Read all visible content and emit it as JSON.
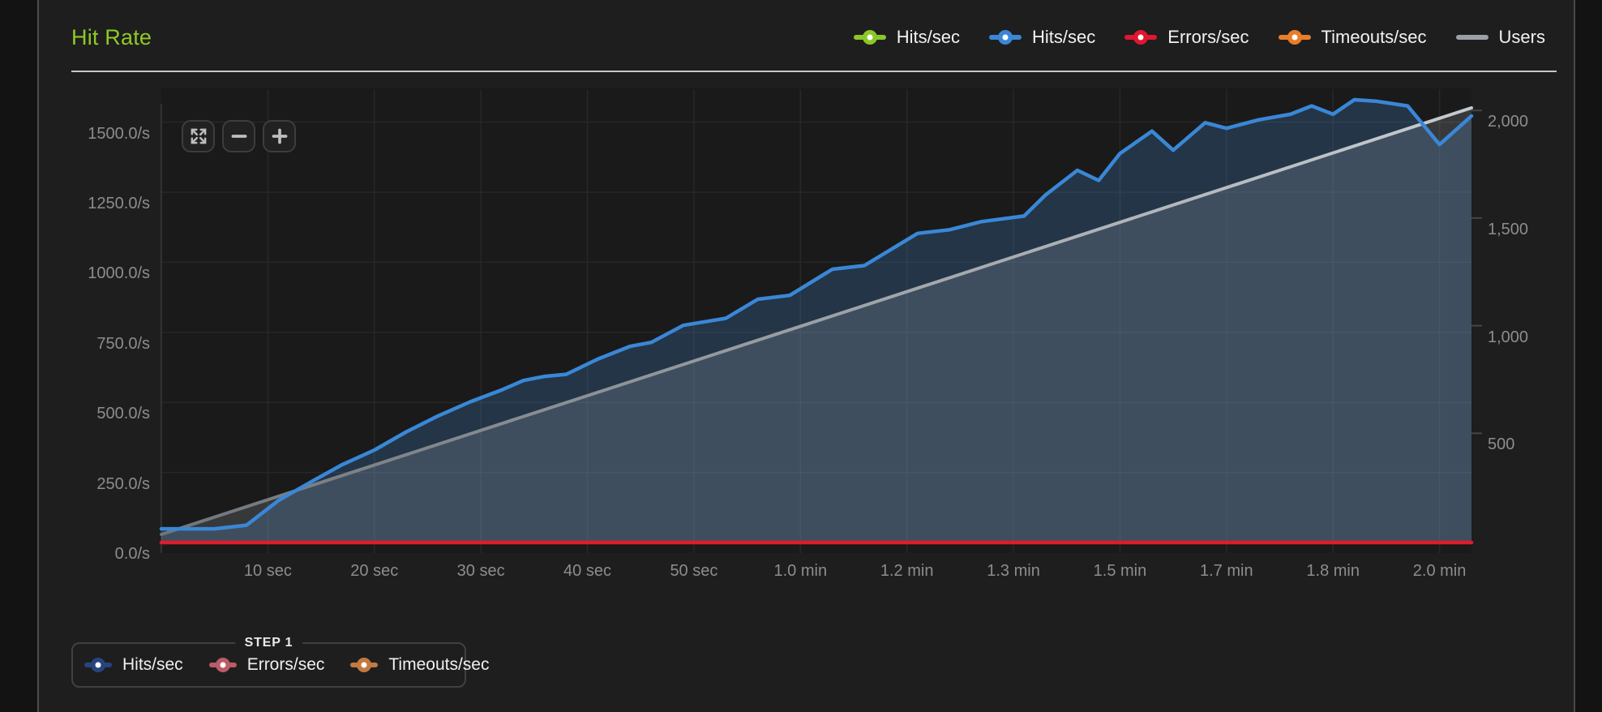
{
  "panel": {
    "title": "Hit Rate"
  },
  "top_legend": {
    "items": [
      {
        "label": "Hits/sec",
        "color": "#8bc727",
        "marker": "dot-line"
      },
      {
        "label": "Hits/sec",
        "color": "#3a87d6",
        "marker": "dot-line"
      },
      {
        "label": "Errors/sec",
        "color": "#e0172f",
        "marker": "dot-line"
      },
      {
        "label": "Timeouts/sec",
        "color": "#ea7d28",
        "marker": "dot-line"
      },
      {
        "label": "Users",
        "color": "#9aa0a6",
        "marker": "line"
      }
    ]
  },
  "zoom_controls": {
    "buttons": [
      {
        "name": "fullscreen-button",
        "icon": "expand-arrows-icon"
      },
      {
        "name": "zoom-out-button",
        "icon": "minus-icon"
      },
      {
        "name": "zoom-in-button",
        "icon": "plus-icon"
      }
    ]
  },
  "chart_data": {
    "type": "line",
    "title": "Hit Rate",
    "grid": true,
    "x_axis": {
      "unit": "time",
      "domain_seconds": [
        0,
        123
      ],
      "ticks": [
        {
          "t": 10,
          "label": "10 sec"
        },
        {
          "t": 20,
          "label": "20 sec"
        },
        {
          "t": 30,
          "label": "30 sec"
        },
        {
          "t": 40,
          "label": "40 sec"
        },
        {
          "t": 50,
          "label": "50 sec"
        },
        {
          "t": 60,
          "label": "1.0 min"
        },
        {
          "t": 70,
          "label": "1.2 min"
        },
        {
          "t": 80,
          "label": "1.3 min"
        },
        {
          "t": 90,
          "label": "1.5 min"
        },
        {
          "t": 100,
          "label": "1.7 min"
        },
        {
          "t": 110,
          "label": "1.8 min"
        },
        {
          "t": 120,
          "label": "2.0 min"
        }
      ]
    },
    "y_left": {
      "unit": "/s",
      "range": [
        0,
        1650
      ],
      "ticks": [
        {
          "v": 0,
          "label": "0.0/s"
        },
        {
          "v": 250,
          "label": "250.0/s"
        },
        {
          "v": 500,
          "label": "500.0/s"
        },
        {
          "v": 750,
          "label": "750.0/s"
        },
        {
          "v": 1000,
          "label": "1000.0/s"
        },
        {
          "v": 1250,
          "label": "1250.0/s"
        },
        {
          "v": 1500,
          "label": "1500.0/s"
        }
      ]
    },
    "y_right": {
      "unit": "users",
      "range": [
        0,
        2150
      ],
      "ticks": [
        {
          "v": 500,
          "label": "500"
        },
        {
          "v": 1000,
          "label": "1,000"
        },
        {
          "v": 1500,
          "label": "1,500"
        },
        {
          "v": 2000,
          "label": "2,000"
        }
      ]
    },
    "series": [
      {
        "name": "Hits/sec",
        "axis": "left",
        "color": "#3a87d6",
        "area": true,
        "area_color": "rgba(62,125,190,0.28)",
        "points": [
          [
            0,
            49
          ],
          [
            5,
            49
          ],
          [
            8,
            62
          ],
          [
            11,
            150
          ],
          [
            14,
            215
          ],
          [
            17,
            278
          ],
          [
            20,
            330
          ],
          [
            23,
            395
          ],
          [
            26,
            452
          ],
          [
            29,
            502
          ],
          [
            32,
            545
          ],
          [
            34,
            578
          ],
          [
            36,
            593
          ],
          [
            38,
            600
          ],
          [
            41,
            655
          ],
          [
            44,
            700
          ],
          [
            46,
            714
          ],
          [
            49,
            775
          ],
          [
            53,
            800
          ],
          [
            56,
            868
          ],
          [
            59,
            882
          ],
          [
            63,
            975
          ],
          [
            66,
            988
          ],
          [
            71,
            1103
          ],
          [
            74,
            1116
          ],
          [
            77,
            1145
          ],
          [
            81,
            1165
          ],
          [
            83,
            1240
          ],
          [
            86,
            1328
          ],
          [
            88,
            1292
          ],
          [
            90,
            1388
          ],
          [
            93,
            1468
          ],
          [
            95,
            1400
          ],
          [
            98,
            1498
          ],
          [
            100,
            1478
          ],
          [
            103,
            1508
          ],
          [
            106,
            1528
          ],
          [
            108,
            1558
          ],
          [
            110,
            1528
          ],
          [
            112,
            1580
          ],
          [
            114,
            1575
          ],
          [
            117,
            1558
          ],
          [
            120,
            1420
          ],
          [
            123,
            1522
          ]
        ]
      },
      {
        "name": "Errors/sec",
        "axis": "left",
        "color": "#e11b2b",
        "area": false,
        "points": [
          [
            0,
            0
          ],
          [
            123,
            0
          ]
        ]
      },
      {
        "name": "Users",
        "axis": "right",
        "color": "#a9aeb3",
        "area": true,
        "area_color": "rgba(168,178,188,0.20)",
        "gradient": [
          "#70757a",
          "#c6cbd0"
        ],
        "points": [
          [
            0,
            30
          ],
          [
            123,
            2012
          ]
        ]
      }
    ]
  },
  "bottom_legend": {
    "group_label": "STEP 1",
    "items": [
      {
        "label": "Hits/sec",
        "color": "#27447f"
      },
      {
        "label": "Errors/sec",
        "color": "#bc5a68"
      },
      {
        "label": "Timeouts/sec",
        "color": "#c27a41"
      }
    ]
  }
}
